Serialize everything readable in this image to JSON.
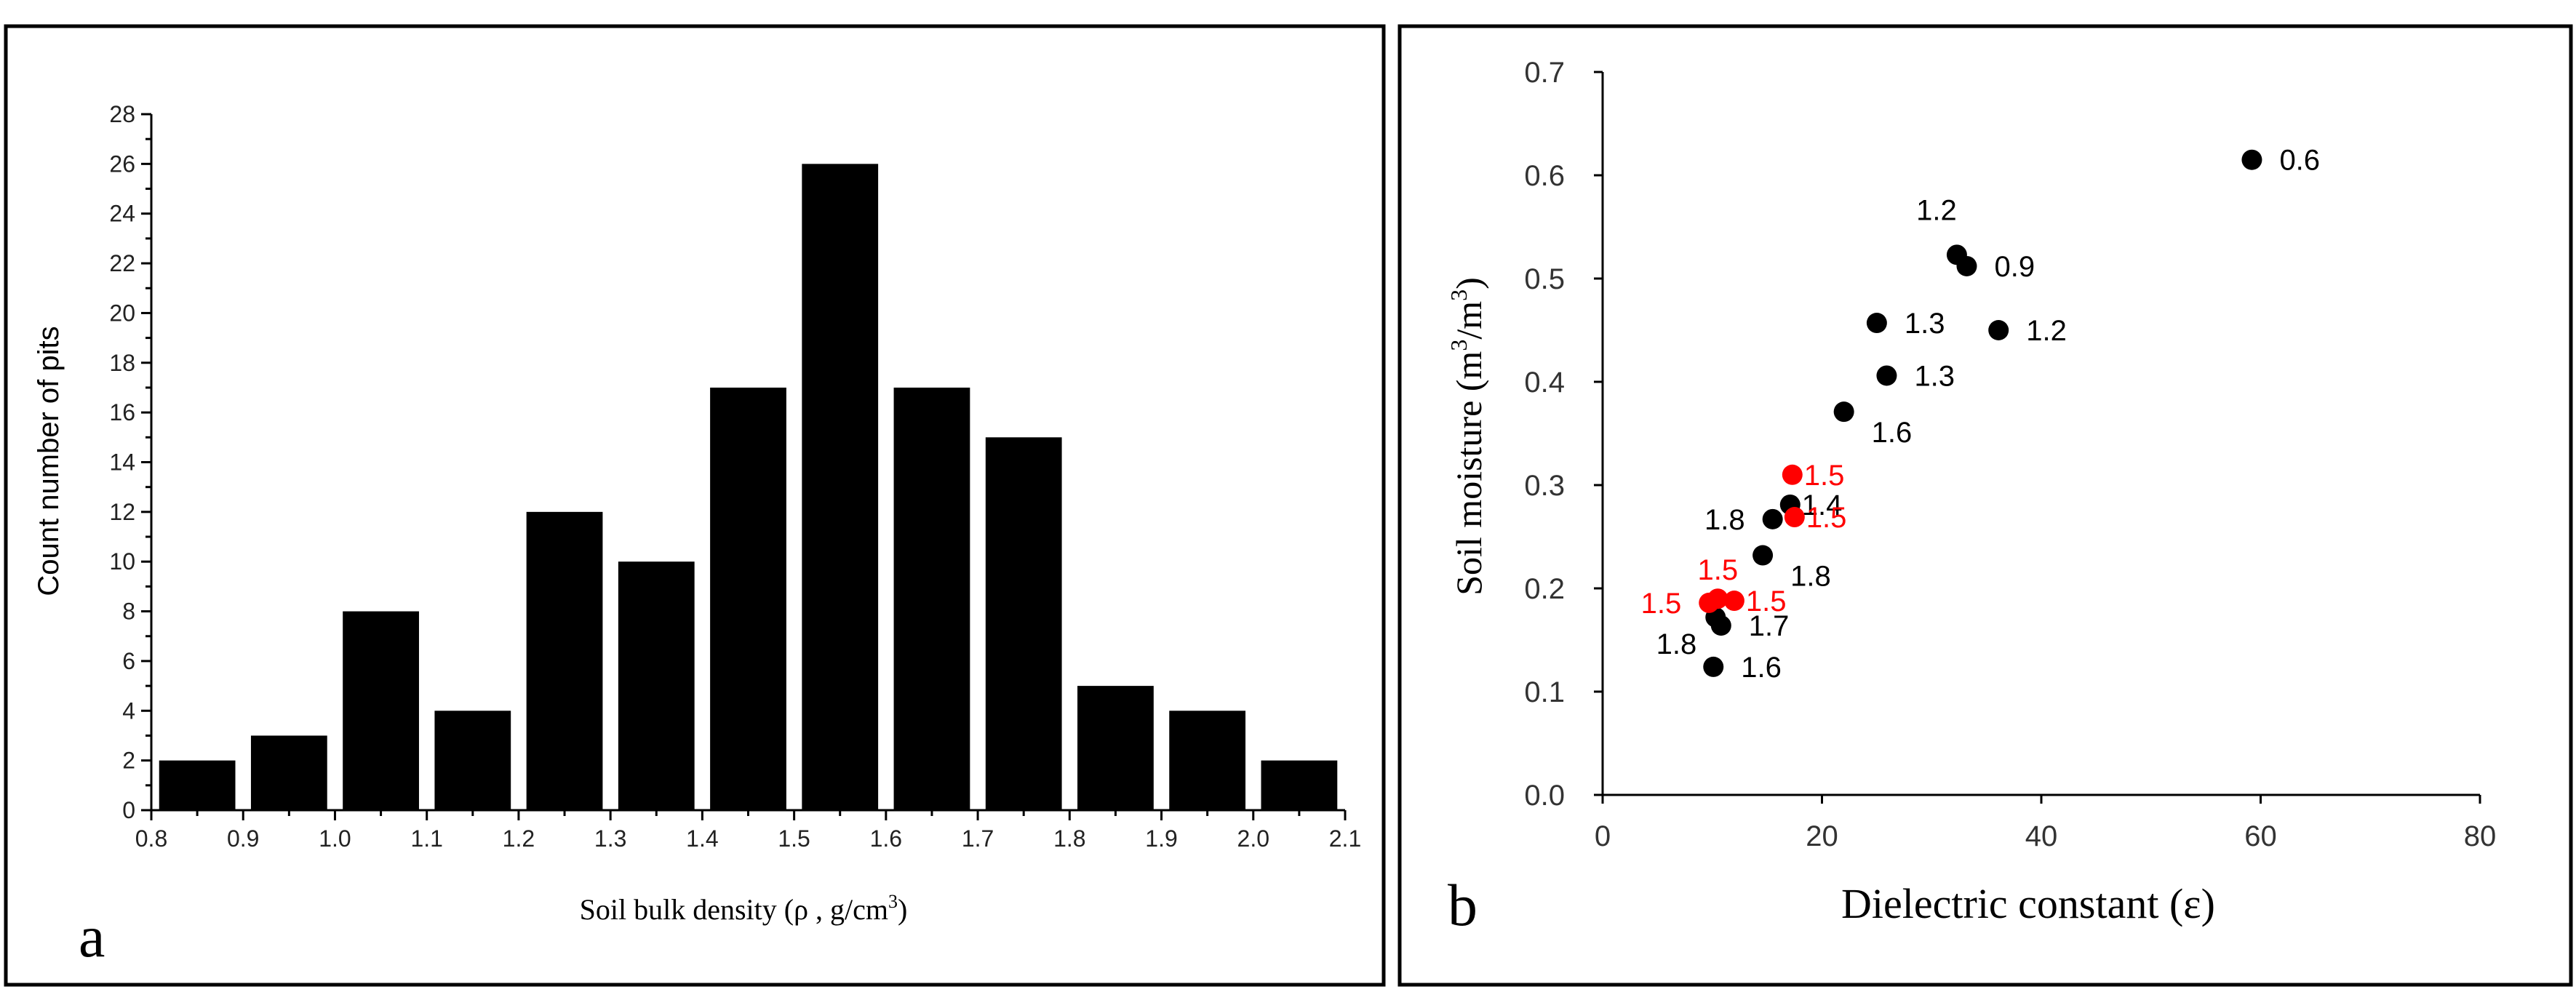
{
  "colors": {
    "bar": "#000000",
    "point_black": "#000000",
    "point_red": "#ff0000"
  },
  "chart_data": [
    {
      "type": "bar",
      "panel_label": "a",
      "title": "",
      "xlabel": "Soil bulk density (ρ , g/cm",
      "xlabel_sup": "3",
      "xlabel_end": ")",
      "ylabel": "Count number of pits",
      "xlim": [
        0.8,
        2.1
      ],
      "ylim": [
        0,
        28
      ],
      "xticks": [
        "0.8",
        "0.9",
        "1.0",
        "1.1",
        "1.2",
        "1.3",
        "1.4",
        "1.5",
        "1.6",
        "1.7",
        "1.8",
        "1.9",
        "2.0",
        "2.1"
      ],
      "yticks": [
        "0",
        "2",
        "4",
        "6",
        "8",
        "10",
        "12",
        "14",
        "16",
        "18",
        "20",
        "22",
        "24",
        "26",
        "28"
      ],
      "bins": [
        [
          0.8,
          0.9
        ],
        [
          0.9,
          1.0
        ],
        [
          1.0,
          1.1
        ],
        [
          1.1,
          1.2
        ],
        [
          1.2,
          1.3
        ],
        [
          1.3,
          1.4
        ],
        [
          1.4,
          1.5
        ],
        [
          1.5,
          1.6
        ],
        [
          1.6,
          1.7
        ],
        [
          1.7,
          1.8
        ],
        [
          1.8,
          1.9
        ],
        [
          1.9,
          2.0
        ],
        [
          2.0,
          2.1
        ]
      ],
      "values": [
        2,
        3,
        8,
        4,
        12,
        10,
        17,
        26,
        17,
        15,
        5,
        4,
        2
      ]
    },
    {
      "type": "scatter",
      "panel_label": "b",
      "title": "",
      "xlabel": "Dielectric constant (ε)",
      "ylabel": "Soil moisture (m",
      "ylabel_sup1": "3",
      "ylabel_mid": "/m",
      "ylabel_sup2": "3",
      "ylabel_end": ")",
      "xlim": [
        0,
        80
      ],
      "ylim": [
        0,
        0.7
      ],
      "xticks": [
        "0",
        "20",
        "40",
        "60",
        "80"
      ],
      "yticks": [
        "0.0",
        "0.1",
        "0.2",
        "0.3",
        "0.4",
        "0.5",
        "0.6",
        "0.7"
      ],
      "series": [
        {
          "name": "black",
          "points": [
            {
              "x": 59.2,
              "y": 0.615,
              "label": "0.6",
              "pos": "right"
            },
            {
              "x": 32.3,
              "y": 0.523,
              "label": "1.2",
              "pos": "above-left"
            },
            {
              "x": 33.2,
              "y": 0.512,
              "label": "0.9",
              "pos": "right"
            },
            {
              "x": 25.0,
              "y": 0.457,
              "label": "1.3",
              "pos": "right"
            },
            {
              "x": 36.1,
              "y": 0.45,
              "label": "1.2",
              "pos": "right"
            },
            {
              "x": 25.9,
              "y": 0.406,
              "label": "1.3",
              "pos": "right"
            },
            {
              "x": 22.0,
              "y": 0.371,
              "label": "1.6",
              "pos": "right-below"
            },
            {
              "x": 17.1,
              "y": 0.281,
              "label": "1.4",
              "pos": "right-tight"
            },
            {
              "x": 15.5,
              "y": 0.267,
              "label": "1.8",
              "pos": "left"
            },
            {
              "x": 14.6,
              "y": 0.232,
              "label": "1.8",
              "pos": "right-below"
            },
            {
              "x": 10.3,
              "y": 0.172,
              "label": "1.8",
              "pos": "left-below"
            },
            {
              "x": 10.8,
              "y": 0.164,
              "label": "1.7",
              "pos": "right"
            },
            {
              "x": 10.1,
              "y": 0.124,
              "label": "1.6",
              "pos": "right"
            }
          ]
        },
        {
          "name": "red",
          "points": [
            {
              "x": 17.3,
              "y": 0.31,
              "label": "1.5",
              "pos": "right-tight"
            },
            {
              "x": 17.5,
              "y": 0.269,
              "label": "1.5",
              "pos": "right-tight"
            },
            {
              "x": 10.5,
              "y": 0.19,
              "label": "1.5",
              "pos": "above"
            },
            {
              "x": 9.7,
              "y": 0.186,
              "label": "1.5",
              "pos": "left"
            },
            {
              "x": 12.0,
              "y": 0.188,
              "label": "1.5",
              "pos": "right-tight"
            }
          ]
        }
      ]
    }
  ]
}
